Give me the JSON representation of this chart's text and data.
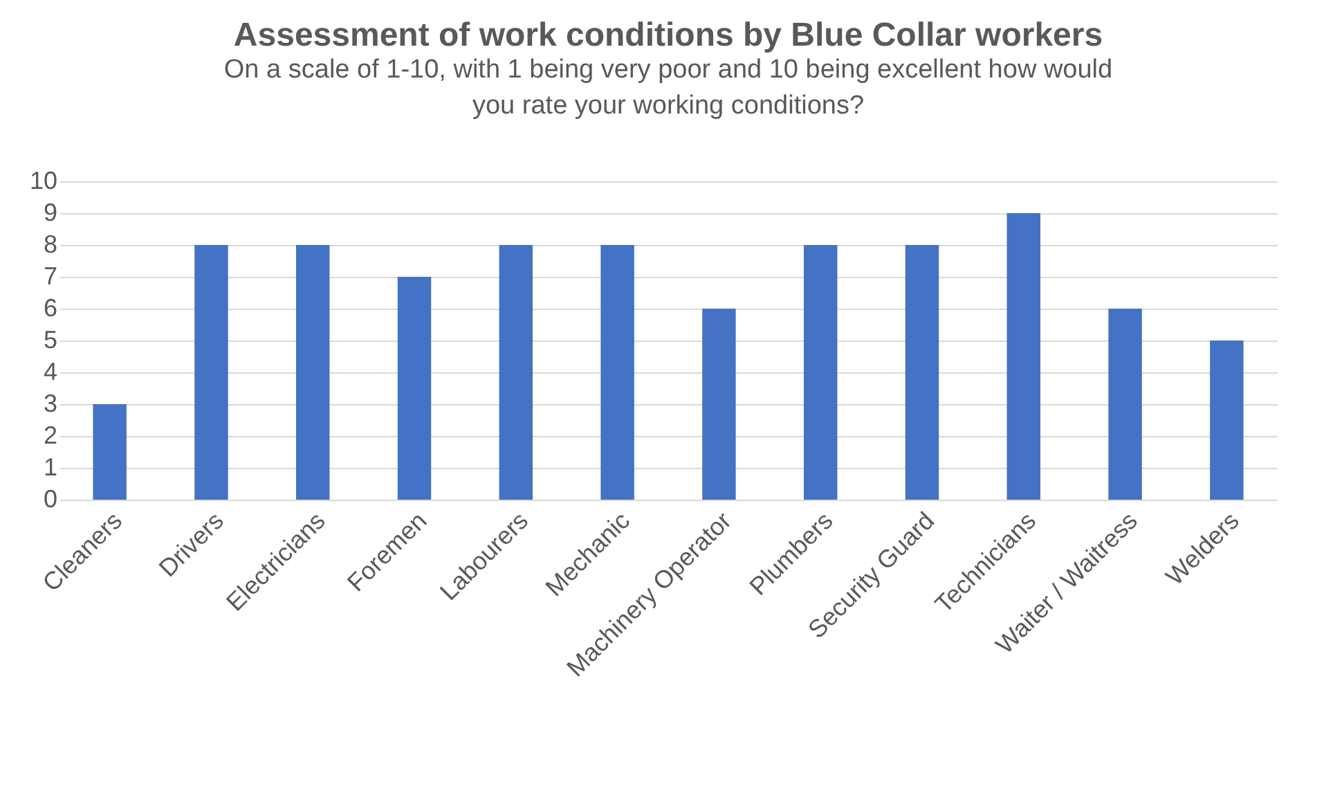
{
  "chart_data": {
    "type": "bar",
    "title": "Assessment of work conditions by Blue Collar workers",
    "subtitle": "On a scale of 1-10, with 1 being very poor and 10 being excellent how would\nyou rate your working conditions?",
    "categories": [
      "Cleaners",
      "Drivers",
      "Electricians",
      "Foremen",
      "Labourers",
      "Mechanic",
      "Machinery Operator",
      "Plumbers",
      "Security Guard",
      "Technicians",
      "Waiter / Waitress",
      "Welders"
    ],
    "values": [
      3,
      8,
      8,
      7,
      8,
      8,
      6,
      8,
      8,
      9,
      6,
      5
    ],
    "color": "#4472c4",
    "ylim": [
      0,
      10
    ],
    "yticks": [
      0,
      1,
      2,
      3,
      4,
      5,
      6,
      7,
      8,
      9,
      10
    ],
    "grid": "y"
  }
}
